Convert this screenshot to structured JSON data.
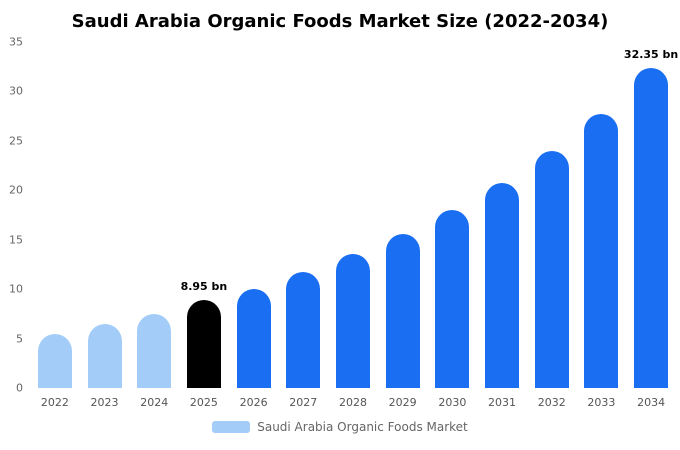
{
  "chart_data": {
    "type": "bar",
    "title": "Saudi Arabia Organic Foods Market Size (2022-2034)",
    "unit": "bn",
    "categories": [
      "2022",
      "2023",
      "2024",
      "2025",
      "2026",
      "2027",
      "2028",
      "2029",
      "2030",
      "2031",
      "2032",
      "2033",
      "2034"
    ],
    "values": [
      5.5,
      6.5,
      7.5,
      8.95,
      10.0,
      11.7,
      13.6,
      15.6,
      18.0,
      20.7,
      24.0,
      27.7,
      32.35
    ],
    "point_colors": [
      "#a3cdf8",
      "#a3cdf8",
      "#a3cdf8",
      "#000000",
      "#1a6ef2",
      "#1a6ef2",
      "#1a6ef2",
      "#1a6ef2",
      "#1a6ef2",
      "#1a6ef2",
      "#1a6ef2",
      "#1a6ef2",
      "#1a6ef2"
    ],
    "annotations": [
      {
        "index": 3,
        "text": "8.95 bn"
      },
      {
        "index": 12,
        "text": "32.35 bn"
      }
    ],
    "ylim": [
      0,
      35
    ],
    "yticks": [
      0,
      5,
      10,
      15,
      20,
      25,
      30,
      35
    ],
    "grid": false,
    "xlabel": "",
    "ylabel": "",
    "legend": {
      "label": "Saudi Arabia Organic Foods Market",
      "position": "bottom",
      "swatch_color": "#a3cdf8"
    },
    "colors": {
      "historical": "#a3cdf8",
      "highlight": "#000000",
      "forecast": "#1a6ef2",
      "axis_text": "#666666",
      "annotation_text": "#000000"
    }
  }
}
